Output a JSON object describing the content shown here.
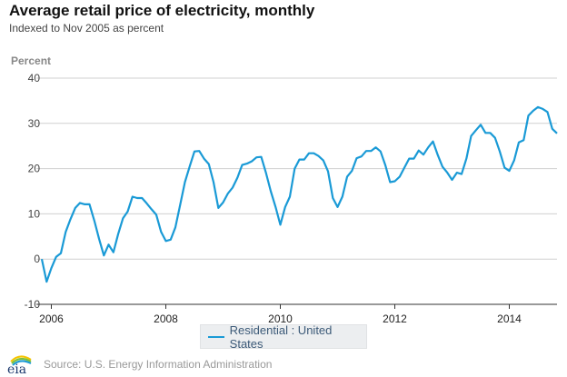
{
  "colors": {
    "series": "#1a9ad6",
    "grid": "#d0d0d0",
    "axis": "#333333"
  },
  "chart_data": {
    "type": "line",
    "title": "Average retail price of electricity, monthly",
    "subtitle": "Indexed to Nov 2005 as percent",
    "ylabel": "Percent",
    "xlabel": "",
    "x_start": "2005-11",
    "x_end": "2014-11",
    "x_ticks": [
      "2006",
      "2008",
      "2010",
      "2012",
      "2014"
    ],
    "y_ticks": [
      "40",
      "30",
      "20",
      "10",
      "0",
      "-10"
    ],
    "ylim": [
      -10,
      40
    ],
    "grid": true,
    "legend_position": "bottom",
    "series": [
      {
        "name": "Residential : United States",
        "values": [
          0,
          -5,
          -2,
          0.5,
          1.3,
          6,
          8.8,
          11.3,
          12.4,
          12.1,
          12.1,
          8.5,
          4.5,
          0.8,
          3.2,
          1.5,
          5.5,
          9,
          10.5,
          13.8,
          13.5,
          13.5,
          12.3,
          11,
          9.8,
          6,
          4,
          4.3,
          7,
          12,
          17,
          20.5,
          23.8,
          23.9,
          22.2,
          21,
          17,
          11.3,
          12.5,
          14.5,
          15.8,
          18,
          20.8,
          21.1,
          21.6,
          22.5,
          22.6,
          19,
          15,
          11.5,
          7.6,
          11.5,
          13.8,
          20,
          22,
          22,
          23.4,
          23.4,
          22.8,
          21.8,
          19.4,
          13.5,
          11.5,
          13.8,
          18.2,
          19.5,
          22.3,
          22.7,
          23.9,
          23.9,
          24.7,
          23.8,
          20.8,
          17,
          17.2,
          18.2,
          20.2,
          22.2,
          22.2,
          24,
          23.1,
          24.7,
          26,
          23,
          20.4,
          19.1,
          17.5,
          19.1,
          18.8,
          22.2,
          27.2,
          28.5,
          29.7,
          27.9,
          27.9,
          26.8,
          23.8,
          20.2,
          19.5,
          21.8,
          25.8,
          26.3,
          31.7,
          32.8,
          33.6,
          33.2,
          32.5,
          28.8,
          27.8
        ]
      }
    ]
  },
  "footer": {
    "logo_text": "eia",
    "source": "Source: U.S. Energy Information Administration"
  }
}
